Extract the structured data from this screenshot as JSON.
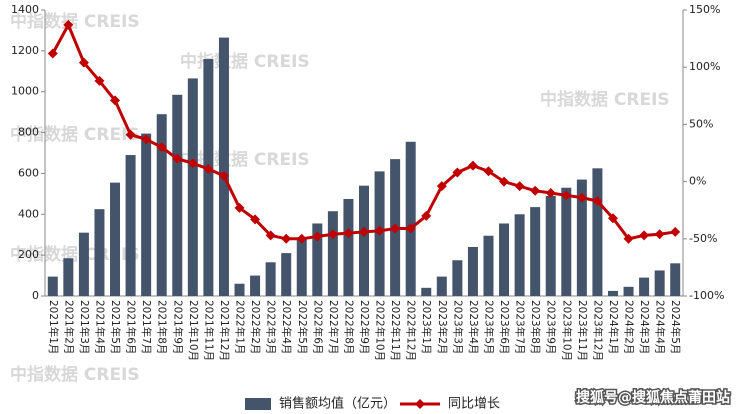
{
  "chart_data": {
    "type": "bar_line",
    "categories": [
      "2021年1月",
      "2021年2月",
      "2021年3月",
      "2021年4月",
      "2021年5月",
      "2021年6月",
      "2021年7月",
      "2021年8月",
      "2021年9月",
      "2021年10月",
      "2021年11月",
      "2021年12月",
      "2022年1月",
      "2022年2月",
      "2022年3月",
      "2022年4月",
      "2022年5月",
      "2022年6月",
      "2022年7月",
      "2022年8月",
      "2022年9月",
      "2022年10月",
      "2022年11月",
      "2022年12月",
      "2023年1月",
      "2023年2月",
      "2023年3月",
      "2023年4月",
      "2023年5月",
      "2023年6月",
      "2023年7月",
      "2023年8月",
      "2023年9月",
      "2023年10月",
      "2023年11月",
      "2023年12月",
      "2024年1月",
      "2024年2月",
      "2024年3月",
      "2024年4月",
      "2024年5月"
    ],
    "series": [
      {
        "name": "销售额均值（亿元）",
        "type": "bar",
        "color": "#44546a",
        "values": [
          95,
          185,
          310,
          425,
          555,
          690,
          795,
          890,
          985,
          1065,
          1160,
          1265,
          60,
          100,
          165,
          210,
          280,
          355,
          415,
          475,
          540,
          610,
          670,
          755,
          40,
          95,
          175,
          240,
          295,
          355,
          400,
          435,
          490,
          530,
          570,
          625,
          25,
          45,
          90,
          125,
          160
        ]
      },
      {
        "name": "同比增长",
        "type": "line",
        "axis": "y2",
        "color": "#c00000",
        "values": [
          112,
          137,
          104,
          88,
          71,
          41,
          37,
          30,
          20,
          16,
          11,
          5,
          -23,
          -33,
          -47,
          -50,
          -50,
          -48,
          -46,
          -45,
          -44,
          -43,
          -41,
          -41,
          -30,
          -4,
          8,
          14,
          9,
          0,
          -4,
          -8,
          -10,
          -12,
          -14,
          -17,
          -32,
          -50,
          -47,
          -46,
          -44
        ]
      }
    ],
    "ylim": [
      0,
      1400
    ],
    "yticks": [
      0,
      200,
      400,
      600,
      800,
      1000,
      1200,
      1400
    ],
    "y2lim": [
      -100,
      150
    ],
    "y2ticks": [
      {
        "value": -100,
        "label": "-100%"
      },
      {
        "value": -50,
        "label": "-50%"
      },
      {
        "value": 0,
        "label": "0%"
      },
      {
        "value": 50,
        "label": "50%"
      },
      {
        "value": 100,
        "label": "100%"
      },
      {
        "value": 150,
        "label": "150%"
      }
    ],
    "watermark": "中指数据 CREIS",
    "source": "搜狐号@搜狐焦点莆田站"
  }
}
